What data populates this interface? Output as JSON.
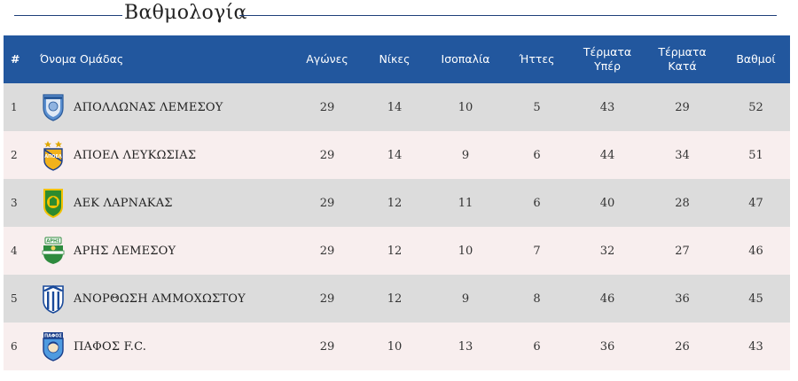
{
  "section": {
    "title": "Βαθμολογία"
  },
  "header": {
    "rank": "#",
    "team": "Όνομα Ομάδας",
    "played": "Αγώνες",
    "wins": "Νίκες",
    "draws": "Ισοπαλία",
    "losses": "Ήττες",
    "gf_line1": "Τέρματα",
    "gf_line2": "Υπέρ",
    "ga_line1": "Τέρματα",
    "ga_line2": "Κατά",
    "points": "Βαθμοί"
  },
  "rows": [
    {
      "rank": "1",
      "team": "ΑΠΟΛΛΩΝΑΣ ΛΕΜΕΣΟΥ",
      "crest": "apollon-crest-icon",
      "played": "29",
      "wins": "14",
      "draws": "10",
      "losses": "5",
      "gf": "43",
      "ga": "29",
      "points": "52"
    },
    {
      "rank": "2",
      "team": "ΑΠΟΕΛ ΛΕΥΚΩΣΙΑΣ",
      "crest": "apoel-crest-icon",
      "played": "29",
      "wins": "14",
      "draws": "9",
      "losses": "6",
      "gf": "44",
      "ga": "34",
      "points": "51"
    },
    {
      "rank": "3",
      "team": "ΑΕΚ ΛΑΡΝΑΚΑΣ",
      "crest": "aek-crest-icon",
      "played": "29",
      "wins": "12",
      "draws": "11",
      "losses": "6",
      "gf": "40",
      "ga": "28",
      "points": "47"
    },
    {
      "rank": "4",
      "team": "ΑΡΗΣ ΛΕΜΕΣΟΥ",
      "crest": "aris-crest-icon",
      "played": "29",
      "wins": "12",
      "draws": "10",
      "losses": "7",
      "gf": "32",
      "ga": "27",
      "points": "46"
    },
    {
      "rank": "5",
      "team": "ΑΝΟΡΘΩΣΗ ΑΜΜΟΧΩΣΤΟΥ",
      "crest": "anorthosis-crest-icon",
      "played": "29",
      "wins": "12",
      "draws": "9",
      "losses": "8",
      "gf": "46",
      "ga": "36",
      "points": "45"
    },
    {
      "rank": "6",
      "team": "ΠΑΦΟΣ F.C.",
      "crest": "pafos-crest-icon",
      "played": "29",
      "wins": "10",
      "draws": "13",
      "losses": "6",
      "gf": "36",
      "ga": "26",
      "points": "43"
    }
  ],
  "crest_text": {
    "apoel": "ΑΠΟΕΛ",
    "aris": "ΑΡΗΣ",
    "pafos": "ΠΑΦΟΣ"
  },
  "colors": {
    "header_bg": "#22579e",
    "row_odd": "#dcdcdc",
    "row_even": "#f8eeee",
    "title_rule": "#1f3f7a"
  }
}
